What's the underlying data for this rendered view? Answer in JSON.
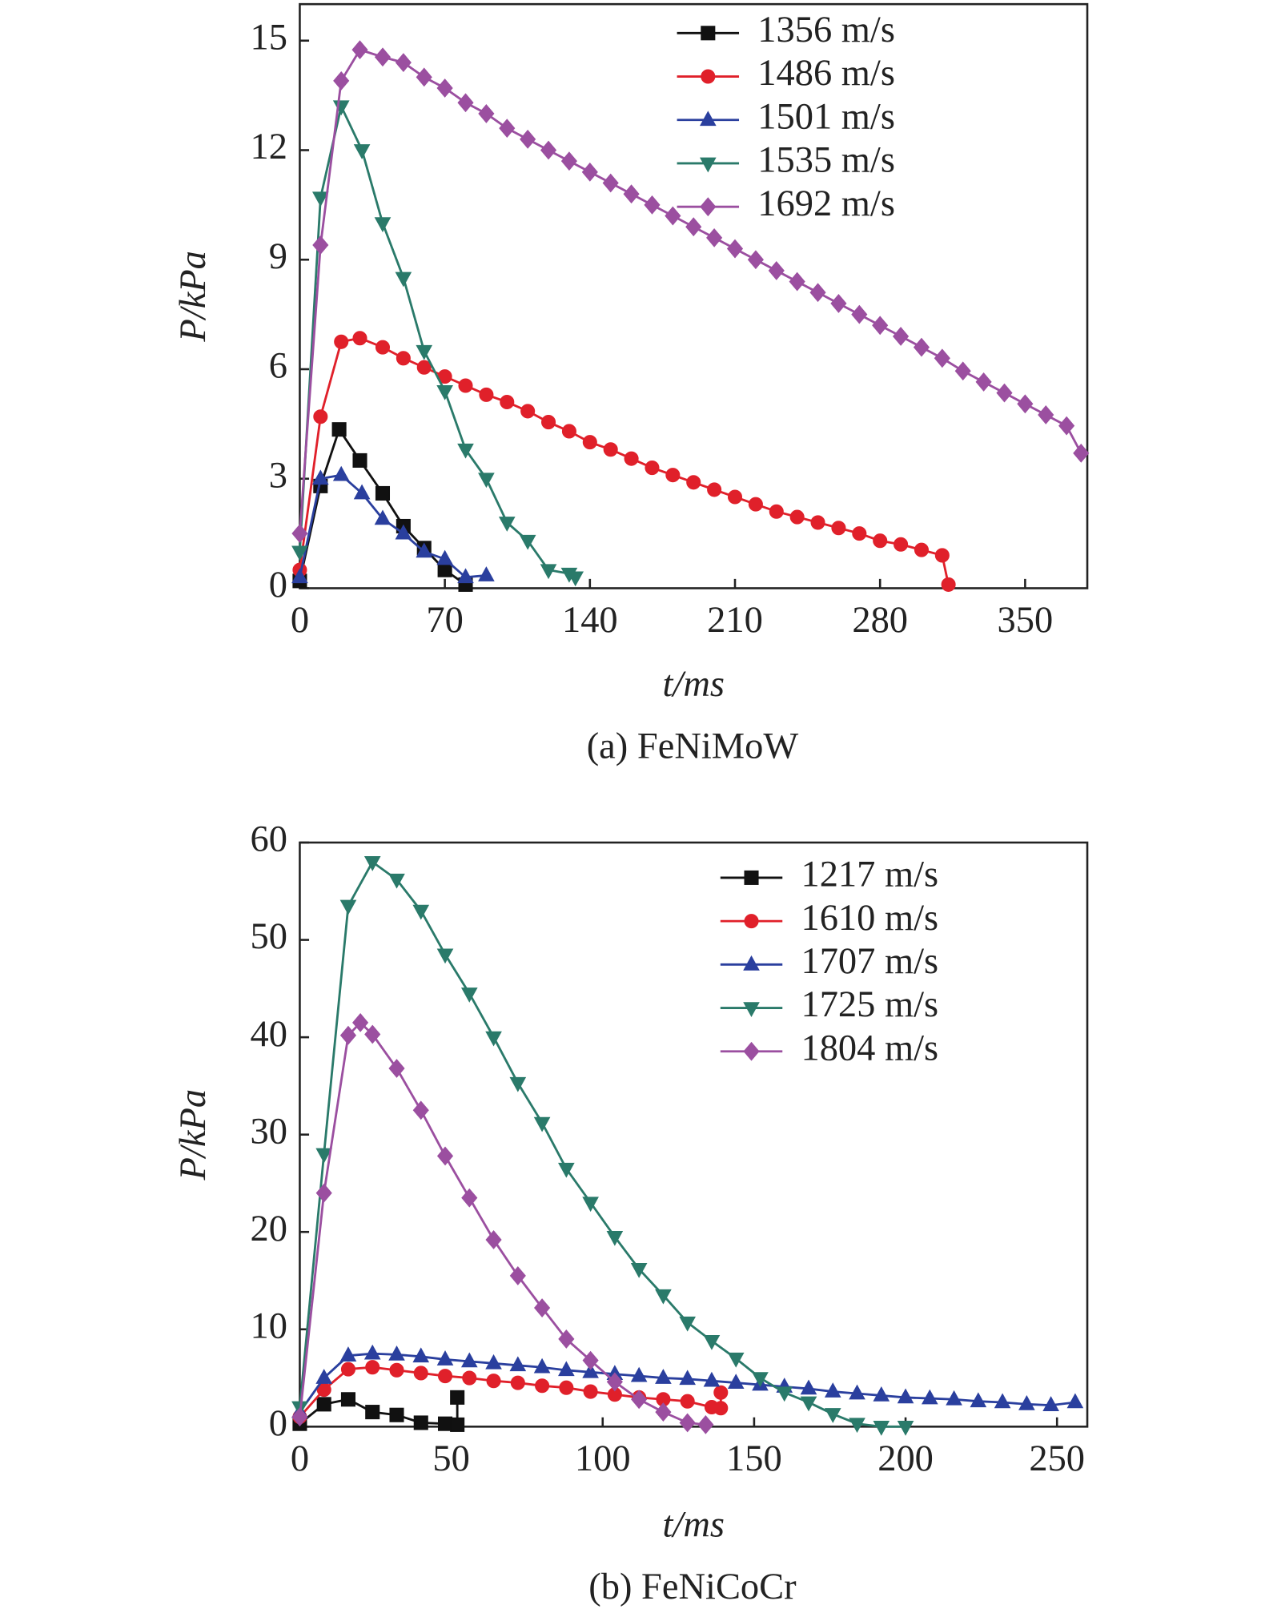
{
  "chart_data": [
    {
      "type": "line",
      "caption": "(a) FeNiMoW",
      "xlabel": "t/ms",
      "ylabel": "P/kPa",
      "xlim": [
        0,
        380
      ],
      "ylim": [
        0,
        16
      ],
      "xticks": [
        0,
        70,
        140,
        210,
        280,
        350
      ],
      "yticks": [
        0,
        3,
        6,
        9,
        12,
        15
      ],
      "legend": "upper-right",
      "series": [
        {
          "name": "1356 m/s",
          "color": "#111111",
          "marker": "square",
          "x": [
            0,
            10,
            19,
            29,
            40,
            50,
            60,
            70,
            80
          ],
          "values": [
            0.2,
            2.8,
            4.35,
            3.5,
            2.6,
            1.7,
            1.1,
            0.5,
            0.1
          ]
        },
        {
          "name": "1486 m/s",
          "color": "#e0202a",
          "marker": "circle",
          "x": [
            0,
            10,
            20,
            29,
            40,
            50,
            60,
            70,
            80,
            90,
            100,
            110,
            120,
            130,
            140,
            150,
            160,
            170,
            180,
            190,
            200,
            210,
            220,
            230,
            240,
            250,
            260,
            270,
            280,
            290,
            300,
            310,
            313
          ],
          "values": [
            0.5,
            4.7,
            6.75,
            6.85,
            6.6,
            6.3,
            6.05,
            5.8,
            5.55,
            5.3,
            5.1,
            4.85,
            4.55,
            4.3,
            4.0,
            3.8,
            3.55,
            3.3,
            3.1,
            2.9,
            2.7,
            2.5,
            2.3,
            2.1,
            1.95,
            1.8,
            1.65,
            1.5,
            1.3,
            1.2,
            1.05,
            0.9,
            0.1
          ]
        },
        {
          "name": "1501 m/s",
          "color": "#2a3f9e",
          "marker": "triangle-up",
          "x": [
            0,
            10,
            20,
            30,
            40,
            50,
            60,
            70,
            80,
            90
          ],
          "values": [
            0.3,
            3.0,
            3.1,
            2.6,
            1.9,
            1.5,
            1.0,
            0.8,
            0.3,
            0.35
          ]
        },
        {
          "name": "1535 m/s",
          "color": "#2a7a6a",
          "marker": "triangle-down",
          "x": [
            0,
            10,
            20,
            30,
            40,
            50,
            60,
            70,
            80,
            90,
            100,
            110,
            120,
            130,
            133
          ],
          "values": [
            1.0,
            10.7,
            13.2,
            12.0,
            10.0,
            8.5,
            6.5,
            5.4,
            3.8,
            3.0,
            1.8,
            1.3,
            0.5,
            0.4,
            0.3
          ]
        },
        {
          "name": "1692 m/s",
          "color": "#9b4fa0",
          "marker": "diamond",
          "x": [
            0,
            10,
            20,
            29,
            40,
            50,
            60,
            70,
            80,
            90,
            100,
            110,
            120,
            130,
            140,
            150,
            160,
            170,
            180,
            190,
            200,
            210,
            220,
            230,
            240,
            250,
            260,
            270,
            280,
            290,
            300,
            310,
            320,
            330,
            340,
            350,
            360,
            370,
            377
          ],
          "values": [
            1.5,
            9.4,
            13.9,
            14.75,
            14.55,
            14.4,
            14.0,
            13.7,
            13.3,
            13.0,
            12.6,
            12.3,
            12.0,
            11.7,
            11.4,
            11.1,
            10.8,
            10.5,
            10.2,
            9.9,
            9.6,
            9.3,
            9.0,
            8.7,
            8.4,
            8.1,
            7.8,
            7.5,
            7.2,
            6.9,
            6.6,
            6.3,
            5.95,
            5.65,
            5.35,
            5.05,
            4.75,
            4.45,
            3.7
          ]
        }
      ]
    },
    {
      "type": "line",
      "caption": "(b) FeNiCoCr",
      "xlabel": "t/ms",
      "ylabel": "P/kPa",
      "xlim": [
        0,
        260
      ],
      "ylim": [
        0,
        60
      ],
      "xticks": [
        0,
        50,
        100,
        150,
        200,
        250
      ],
      "yticks": [
        0,
        10,
        20,
        30,
        40,
        50,
        60
      ],
      "legend": "upper-right",
      "series": [
        {
          "name": "1217 m/s",
          "color": "#111111",
          "marker": "square",
          "x": [
            0,
            8,
            16,
            24,
            32,
            40,
            48,
            52,
            52
          ],
          "values": [
            0.3,
            2.3,
            2.8,
            1.5,
            1.2,
            0.4,
            0.3,
            0.2,
            3.0
          ]
        },
        {
          "name": "1610 m/s",
          "color": "#e0202a",
          "marker": "circle",
          "x": [
            0,
            8,
            16,
            24,
            32,
            40,
            48,
            56,
            64,
            72,
            80,
            88,
            96,
            104,
            112,
            120,
            128,
            136,
            139,
            139
          ],
          "values": [
            1.0,
            3.8,
            5.9,
            6.1,
            5.8,
            5.5,
            5.2,
            5.0,
            4.7,
            4.5,
            4.2,
            4.0,
            3.6,
            3.3,
            3.0,
            2.8,
            2.6,
            2.0,
            1.9,
            3.5
          ]
        },
        {
          "name": "1707 m/s",
          "color": "#2a3f9e",
          "marker": "triangle-up",
          "x": [
            0,
            8,
            16,
            24,
            32,
            40,
            48,
            56,
            64,
            72,
            80,
            88,
            96,
            104,
            112,
            120,
            128,
            136,
            144,
            152,
            160,
            168,
            176,
            184,
            192,
            200,
            208,
            216,
            224,
            232,
            240,
            248,
            256
          ],
          "values": [
            1.5,
            5.0,
            7.3,
            7.5,
            7.4,
            7.2,
            6.9,
            6.7,
            6.5,
            6.3,
            6.1,
            5.8,
            5.6,
            5.4,
            5.2,
            5.0,
            4.9,
            4.7,
            4.5,
            4.3,
            4.1,
            3.9,
            3.6,
            3.4,
            3.2,
            3.0,
            2.9,
            2.8,
            2.6,
            2.5,
            2.3,
            2.2,
            2.5
          ]
        },
        {
          "name": "1725 m/s",
          "color": "#2a7a6a",
          "marker": "triangle-down",
          "x": [
            0,
            8,
            16,
            24,
            32,
            40,
            48,
            56,
            64,
            72,
            80,
            88,
            96,
            104,
            112,
            120,
            128,
            136,
            144,
            152,
            160,
            168,
            176,
            184,
            192,
            200
          ],
          "values": [
            2.0,
            28.0,
            53.5,
            58.0,
            56.2,
            53.0,
            48.5,
            44.5,
            40.0,
            35.3,
            31.2,
            26.5,
            23.0,
            19.5,
            16.2,
            13.5,
            10.7,
            8.8,
            7.0,
            5.0,
            3.5,
            2.5,
            1.3,
            0.3,
            0,
            0
          ]
        },
        {
          "name": "1804 m/s",
          "color": "#9b4fa0",
          "marker": "diamond",
          "x": [
            0,
            8,
            16,
            20,
            24,
            32,
            40,
            48,
            56,
            64,
            72,
            80,
            88,
            96,
            104,
            112,
            120,
            128,
            134
          ],
          "values": [
            1.0,
            24.0,
            40.2,
            41.5,
            40.3,
            36.8,
            32.5,
            27.8,
            23.5,
            19.2,
            15.5,
            12.2,
            9.0,
            6.8,
            4.6,
            2.8,
            1.5,
            0.4,
            0.2
          ]
        }
      ]
    }
  ]
}
